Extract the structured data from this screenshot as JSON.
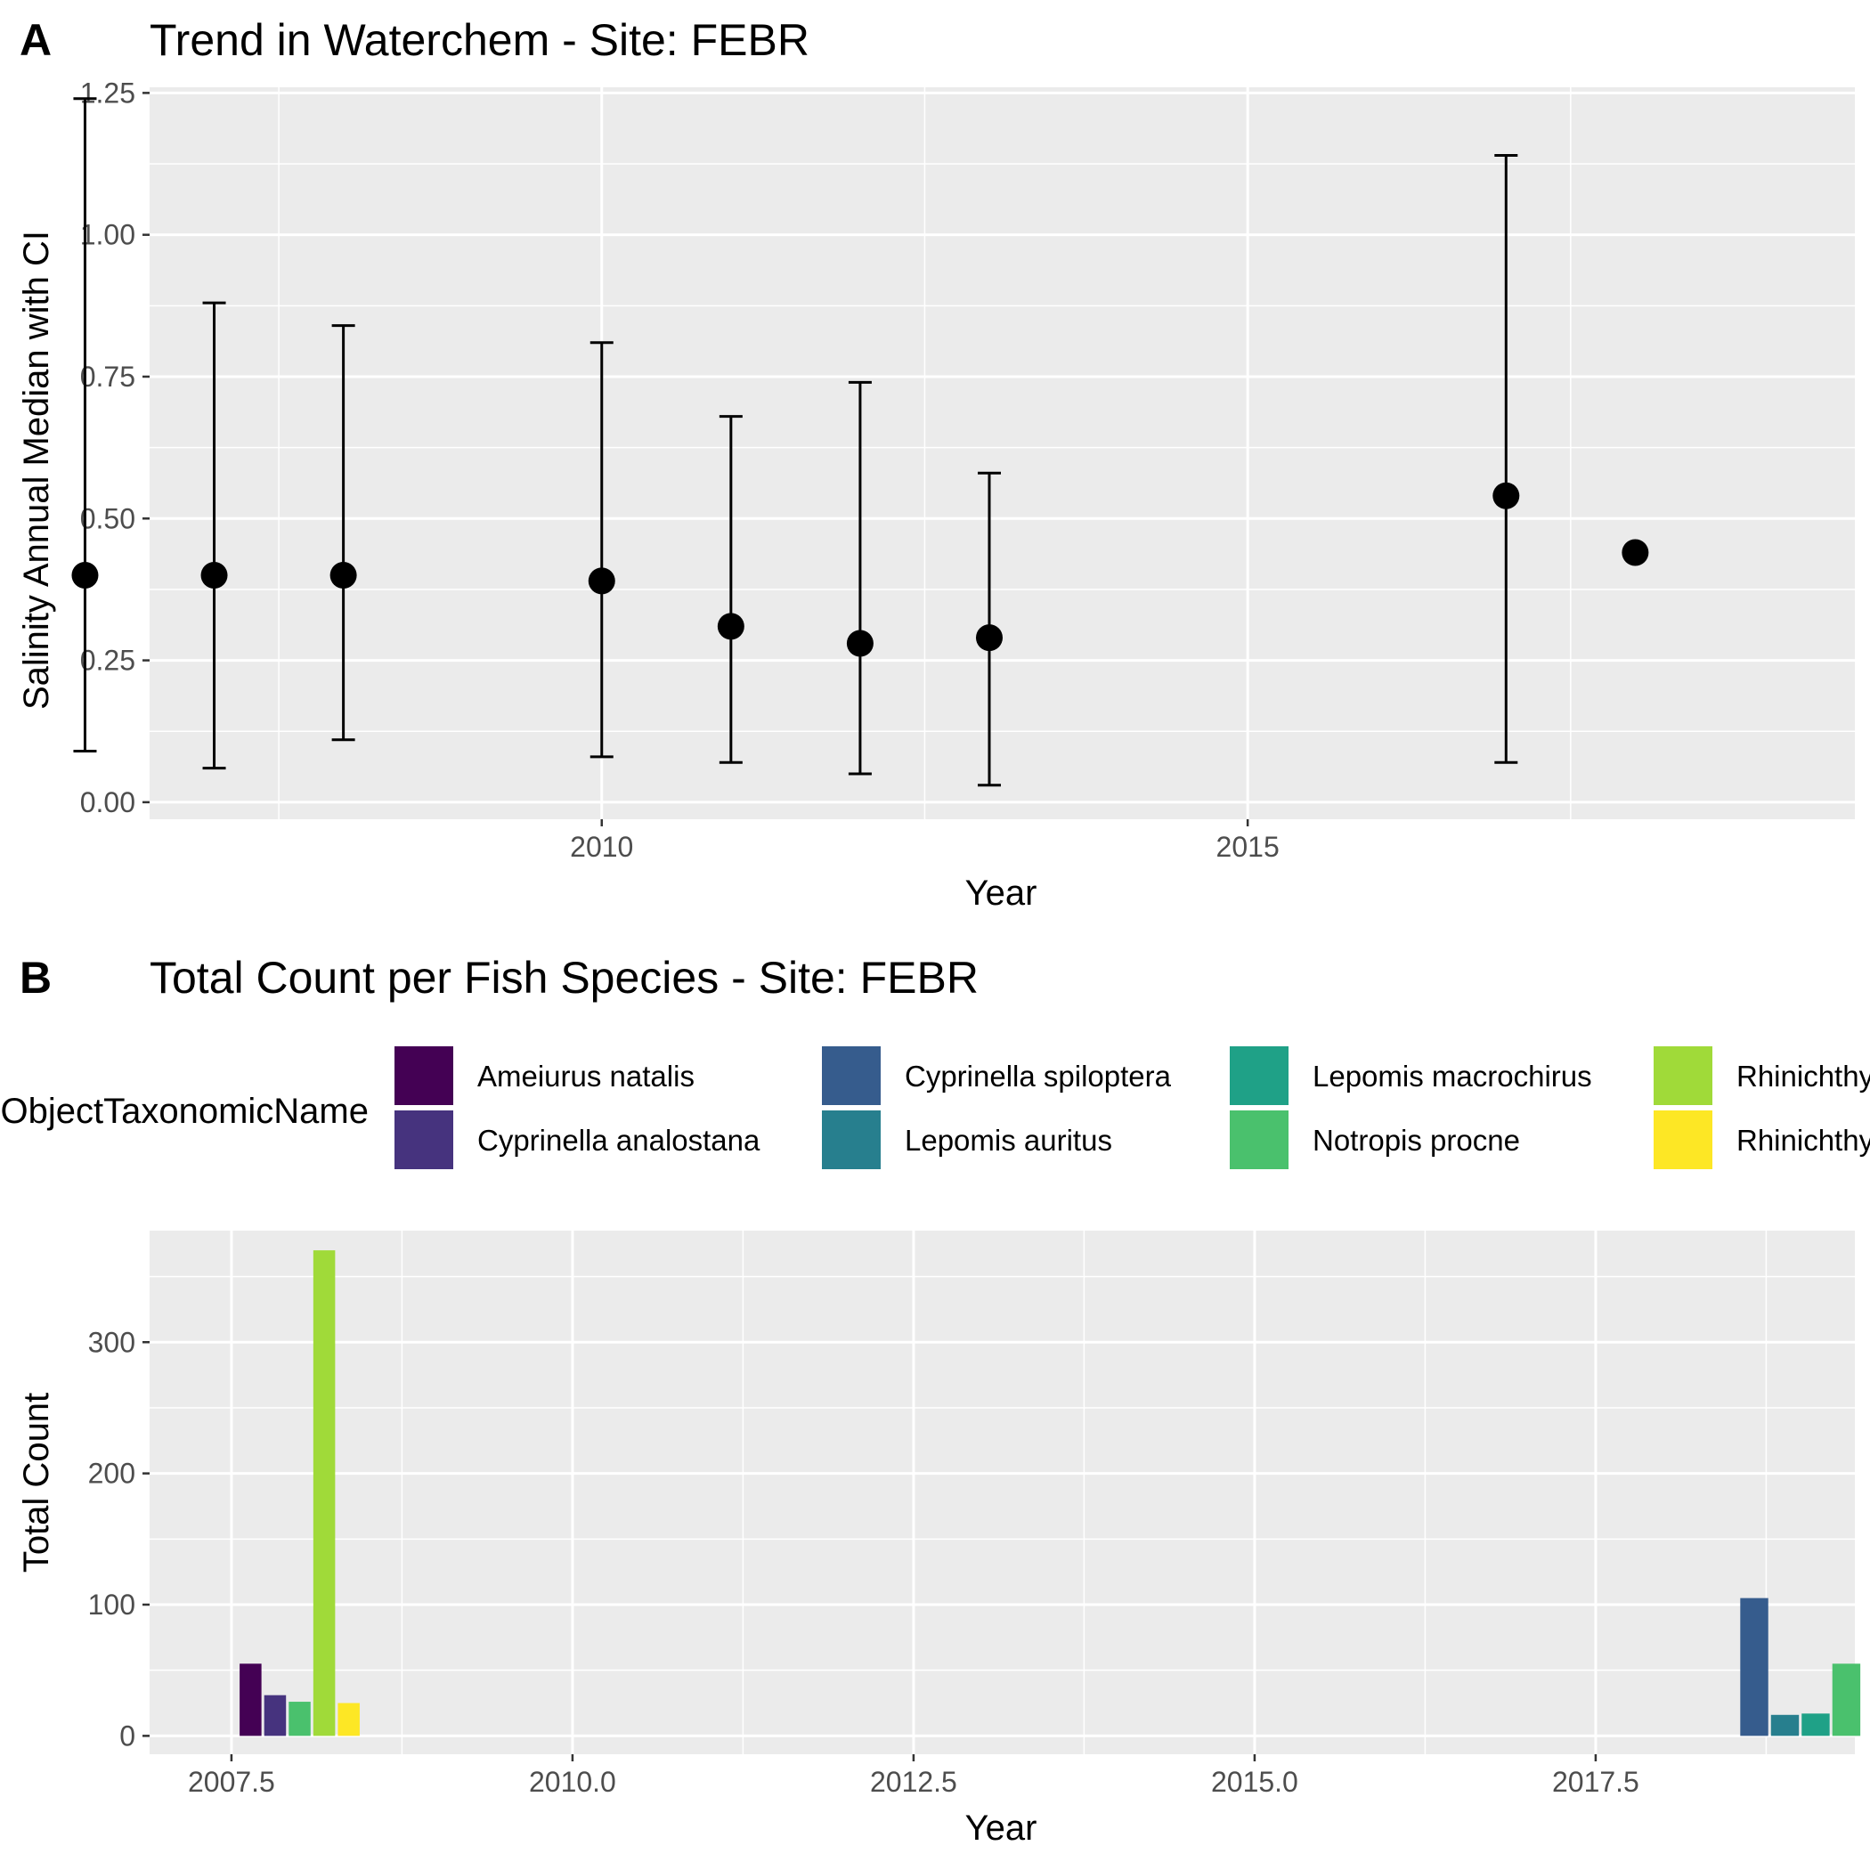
{
  "chart_data": [
    {
      "type": "scatter",
      "panel_label": "A",
      "title": "Trend in Waterchem - Site: FEBR",
      "xlabel": "Year",
      "ylabel": "Salinity Annual Median with CI",
      "xlim": [
        2006.5,
        2019.7
      ],
      "ylim": [
        -0.03,
        1.26
      ],
      "x_ticks": [
        2010,
        2015
      ],
      "x_tick_labels": [
        "2010",
        "2015"
      ],
      "x_minor_ticks": [
        2007.5,
        2012.5,
        2017.5
      ],
      "y_ticks": [
        0,
        0.25,
        0.5,
        0.75,
        1.0,
        1.25
      ],
      "y_tick_labels": [
        "0.00",
        "0.25",
        "0.50",
        "0.75",
        "1.00",
        "1.25"
      ],
      "grid": true,
      "points": [
        {
          "x": 2006,
          "y": 0.4,
          "lower": 0.09,
          "upper": 1.24
        },
        {
          "x": 2007,
          "y": 0.4,
          "lower": 0.06,
          "upper": 0.88
        },
        {
          "x": 2008,
          "y": 0.4,
          "lower": 0.11,
          "upper": 0.84
        },
        {
          "x": 2010,
          "y": 0.39,
          "lower": 0.08,
          "upper": 0.81
        },
        {
          "x": 2011,
          "y": 0.31,
          "lower": 0.07,
          "upper": 0.68
        },
        {
          "x": 2012,
          "y": 0.28,
          "lower": 0.05,
          "upper": 0.74
        },
        {
          "x": 2013,
          "y": 0.29,
          "lower": 0.03,
          "upper": 0.58
        },
        {
          "x": 2017,
          "y": 0.54,
          "lower": 0.07,
          "upper": 1.14
        },
        {
          "x": 2018,
          "y": 0.44,
          "lower": null,
          "upper": null
        }
      ],
      "colors": {
        "point": "#000000",
        "panel": "#ebebeb",
        "grid": "#ffffff"
      }
    },
    {
      "type": "bar",
      "panel_label": "B",
      "title": "Total Count per Fish Species - Site: FEBR",
      "xlabel": "Year",
      "ylabel": "Total Count",
      "xlim": [
        2006.9,
        2019.4
      ],
      "ylim": [
        -14,
        385
      ],
      "x_ticks": [
        2007.5,
        2010.0,
        2012.5,
        2015.0,
        2017.5
      ],
      "x_tick_labels": [
        "2007.5",
        "2010.0",
        "2012.5",
        "2015.0",
        "2017.5"
      ],
      "x_minor_ticks": [
        2008.75,
        2011.25,
        2013.75,
        2016.25,
        2018.75
      ],
      "y_ticks": [
        0,
        100,
        200,
        300
      ],
      "y_tick_labels": [
        "0",
        "100",
        "200",
        "300"
      ],
      "y_minor_ticks": [
        50,
        150,
        250,
        350
      ],
      "grid": true,
      "legend": {
        "title": "ObjectTaxonomicName",
        "position": "top",
        "entries": [
          {
            "label": "Ameiurus natalis",
            "color": "#440154"
          },
          {
            "label": "Cyprinella analostana",
            "color": "#46337e"
          },
          {
            "label": "Cyprinella spiloptera",
            "color": "#365c8d"
          },
          {
            "label": "Lepomis auritus",
            "color": "#277f8e"
          },
          {
            "label": "Lepomis macrochirus",
            "color": "#1fa187"
          },
          {
            "label": "Notropis procne",
            "color": "#4ac16d"
          },
          {
            "label": "Rhinichthys atratulus",
            "color": "#a0da39"
          },
          {
            "label": "Rhinichthys cataractae",
            "color": "#fde725"
          }
        ]
      },
      "groups": [
        {
          "year": 2008,
          "bars": [
            {
              "species": "Ameiurus natalis",
              "value": 55
            },
            {
              "species": "Cyprinella analostana",
              "value": 31
            },
            {
              "species": "Notropis procne",
              "value": 26
            },
            {
              "species": "Rhinichthys atratulus",
              "value": 370
            },
            {
              "species": "Rhinichthys cataractae",
              "value": 25
            }
          ]
        },
        {
          "year": 2019,
          "bars": [
            {
              "species": "Cyprinella spiloptera",
              "value": 105
            },
            {
              "species": "Lepomis auritus",
              "value": 16
            },
            {
              "species": "Lepomis macrochirus",
              "value": 17
            },
            {
              "species": "Notropis procne",
              "value": 55
            }
          ]
        }
      ],
      "colors": {
        "panel": "#ebebeb",
        "grid": "#ffffff"
      }
    }
  ]
}
